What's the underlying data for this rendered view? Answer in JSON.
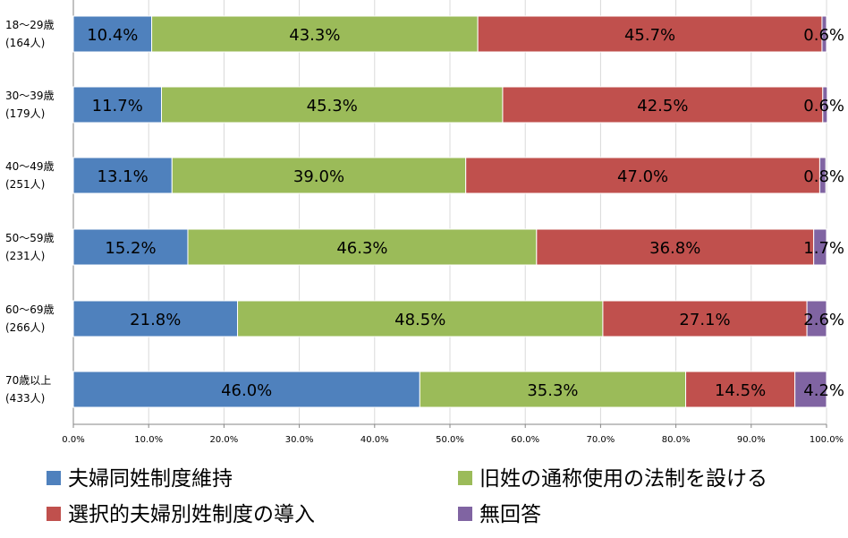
{
  "chart_data": {
    "type": "bar",
    "orientation": "horizontal",
    "stacked": true,
    "percent": true,
    "categories": [
      [
        "18～29歳",
        "(164人)"
      ],
      [
        "30～39歳",
        "(179人)"
      ],
      [
        "40～49歳",
        "(251人)"
      ],
      [
        "50～59歳",
        "(231人)"
      ],
      [
        "60～69歳",
        "(266人)"
      ],
      [
        "70歳以上",
        "(433人)"
      ]
    ],
    "series": [
      {
        "name": "夫婦同姓制度維持",
        "color": "#4f81bd",
        "values": [
          10.4,
          11.7,
          13.1,
          15.2,
          21.8,
          46.0
        ]
      },
      {
        "name": "旧姓の通称使用の法制を設ける",
        "color": "#9bbb59",
        "values": [
          43.3,
          45.3,
          39.0,
          46.3,
          48.5,
          35.3
        ]
      },
      {
        "name": "選択的夫婦別姓制度の導入",
        "color": "#c0504d",
        "values": [
          45.7,
          42.5,
          47.0,
          36.8,
          27.1,
          14.5
        ]
      },
      {
        "name": "無回答",
        "color": "#8064a2",
        "values": [
          0.6,
          0.6,
          0.8,
          1.7,
          2.6,
          4.2
        ]
      }
    ],
    "data_labels": [
      [
        "10.4%",
        "43.3%",
        "45.7%",
        "0.6%"
      ],
      [
        "11.7%",
        "45.3%",
        "42.5%",
        "0.6%"
      ],
      [
        "13.1%",
        "39.0%",
        "47.0%",
        "0.8%"
      ],
      [
        "15.2%",
        "46.3%",
        "36.8%",
        "1.7%"
      ],
      [
        "21.8%",
        "48.5%",
        "27.1%",
        "2.6%"
      ],
      [
        "46.0%",
        "35.3%",
        "14.5%",
        "4.2%"
      ]
    ],
    "xlim": [
      0,
      100
    ],
    "xticks": [
      "0.0%",
      "10.0%",
      "20.0%",
      "30.0%",
      "40.0%",
      "50.0%",
      "60.0%",
      "70.0%",
      "80.0%",
      "90.0%",
      "100.0%"
    ],
    "grid": true,
    "legend_position": "bottom",
    "title": "",
    "xlabel": "",
    "ylabel": ""
  }
}
